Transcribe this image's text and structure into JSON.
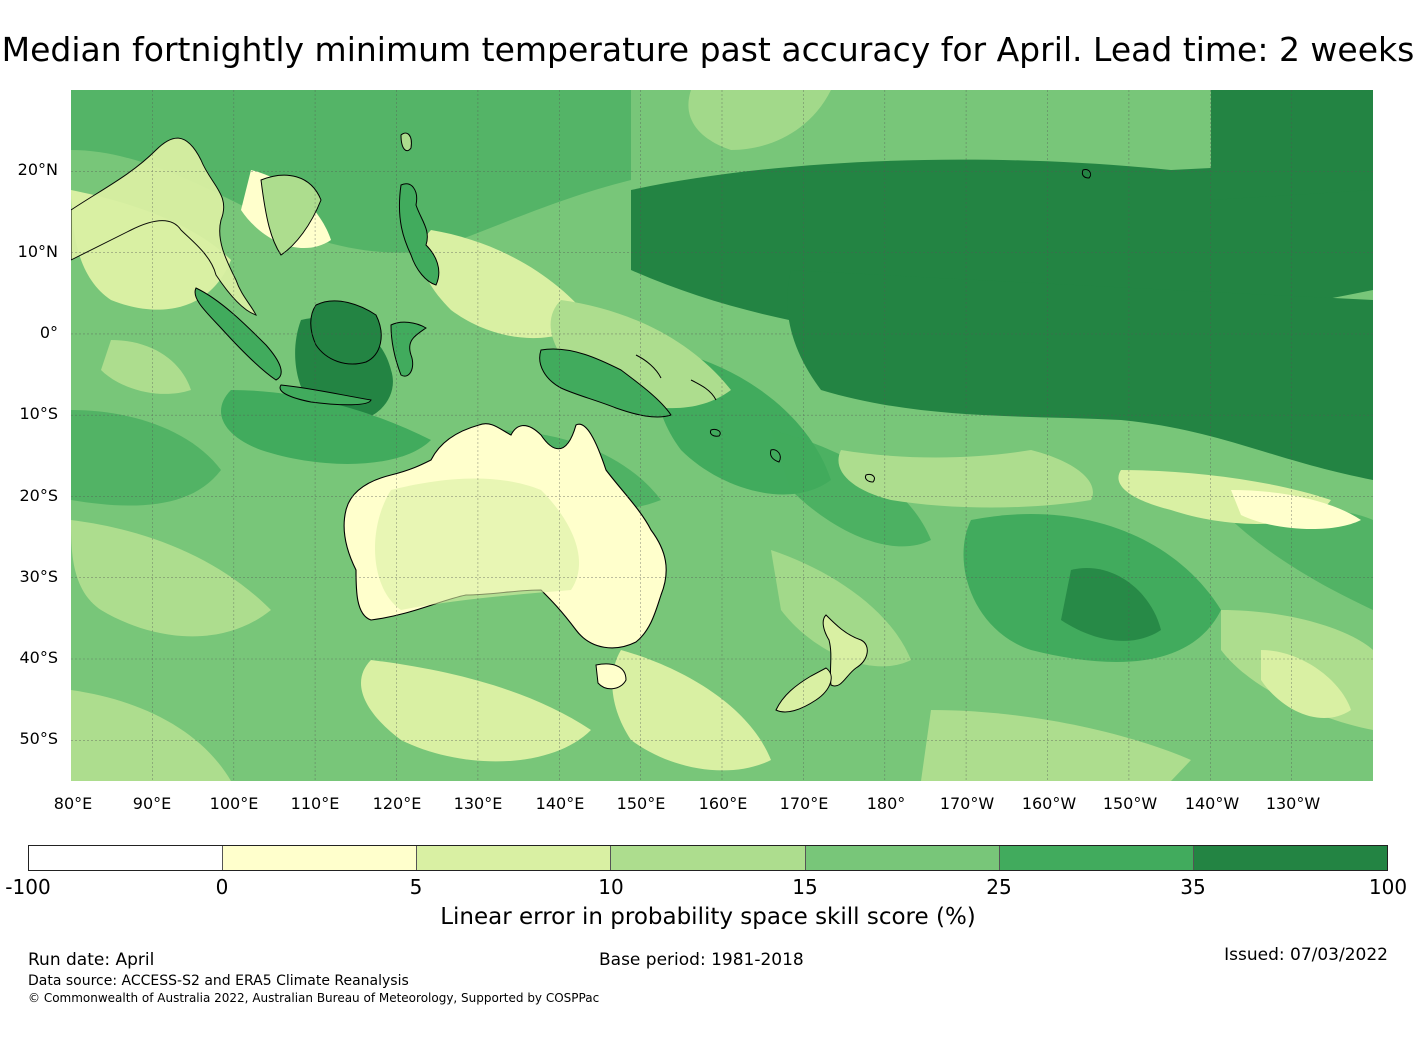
{
  "title": "Median fortnightly minimum temperature past accuracy for April. Lead time: 2 weeks",
  "map": {
    "lat_labels": [
      "20°N",
      "10°N",
      "0°",
      "10°S",
      "20°S",
      "30°S",
      "40°S",
      "50°S"
    ],
    "lon_labels": [
      "80°E",
      "90°E",
      "100°E",
      "110°E",
      "120°E",
      "130°E",
      "140°E",
      "150°E",
      "160°E",
      "170°E",
      "180°",
      "170°W",
      "160°W",
      "150°W",
      "140°W",
      "130°W"
    ],
    "lat_range": [
      -55,
      30
    ],
    "lon_range": [
      80,
      240
    ],
    "gridlines": true
  },
  "colorbar": {
    "ticks": [
      "-100",
      "0",
      "5",
      "10",
      "15",
      "25",
      "35",
      "100"
    ],
    "colors": [
      "#ffffff",
      "#ffffcc",
      "#d9f0a3",
      "#addd8e",
      "#78c679",
      "#41ab5d",
      "#238443"
    ],
    "label": "Linear error in probability space skill score (%)"
  },
  "footer": {
    "run_date": "Run date: April",
    "base_period": "Base period: 1981-2018",
    "issued": "Issued: 07/03/2022",
    "data_source": "Data source: ACCESS-S2 and ERA5 Climate Reanalysis",
    "copyright": "© Commonwealth of Australia 2022, Australian Bureau of Meteorology, Supported by COSPPac"
  }
}
